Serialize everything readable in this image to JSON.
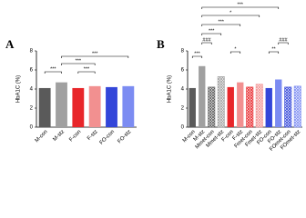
{
  "chart_data": [
    {
      "type": "bar",
      "panel": "A",
      "y_label": "HbA1C (%)",
      "categories": [
        "M-con",
        "M-stz",
        "F-con",
        "F-stz",
        "FO-con",
        "FO-stz"
      ],
      "values": [
        4.1,
        4.7,
        4.1,
        4.3,
        4.2,
        4.3
      ],
      "colors": [
        "#5a5a5a",
        "#a0a0a0",
        "#e8262a",
        "#f29090",
        "#3346d9",
        "#7c8cf2"
      ],
      "hatched": [
        false,
        false,
        false,
        false,
        false,
        false
      ],
      "ylim": [
        0,
        8
      ],
      "yticks": [
        0,
        2,
        4,
        6,
        8
      ],
      "annotations": [
        "***",
        "***",
        "***",
        "***"
      ]
    },
    {
      "type": "bar",
      "panel": "B",
      "y_label": "HbA1C (%)",
      "categories": [
        "M-con",
        "M-stz",
        "Mmet-con",
        "Mmet-stz",
        "F-con",
        "F-stz",
        "Fmet-con",
        "Fmet-stz",
        "FO-con",
        "FO-stz",
        "FOmet-con",
        "FOmet-stz"
      ],
      "values": [
        4.1,
        6.4,
        4.2,
        5.3,
        4.2,
        4.7,
        4.2,
        4.5,
        4.1,
        5.0,
        4.2,
        4.3
      ],
      "colors": [
        "#5a5a5a",
        "#a0a0a0",
        "#5a5a5a",
        "#a0a0a0",
        "#e8262a",
        "#f29090",
        "#e8262a",
        "#f29090",
        "#3346d9",
        "#7c8cf2",
        "#3346d9",
        "#7c8cf2"
      ],
      "hatched": [
        false,
        false,
        true,
        true,
        false,
        false,
        true,
        true,
        false,
        false,
        true,
        true
      ],
      "ylim": [
        0,
        8
      ],
      "yticks": [
        0,
        2,
        4,
        6,
        8
      ],
      "annotations": [
        "***",
        "*",
        "***",
        "***",
        "###",
        "###",
        "*",
        "**",
        "***"
      ]
    }
  ]
}
